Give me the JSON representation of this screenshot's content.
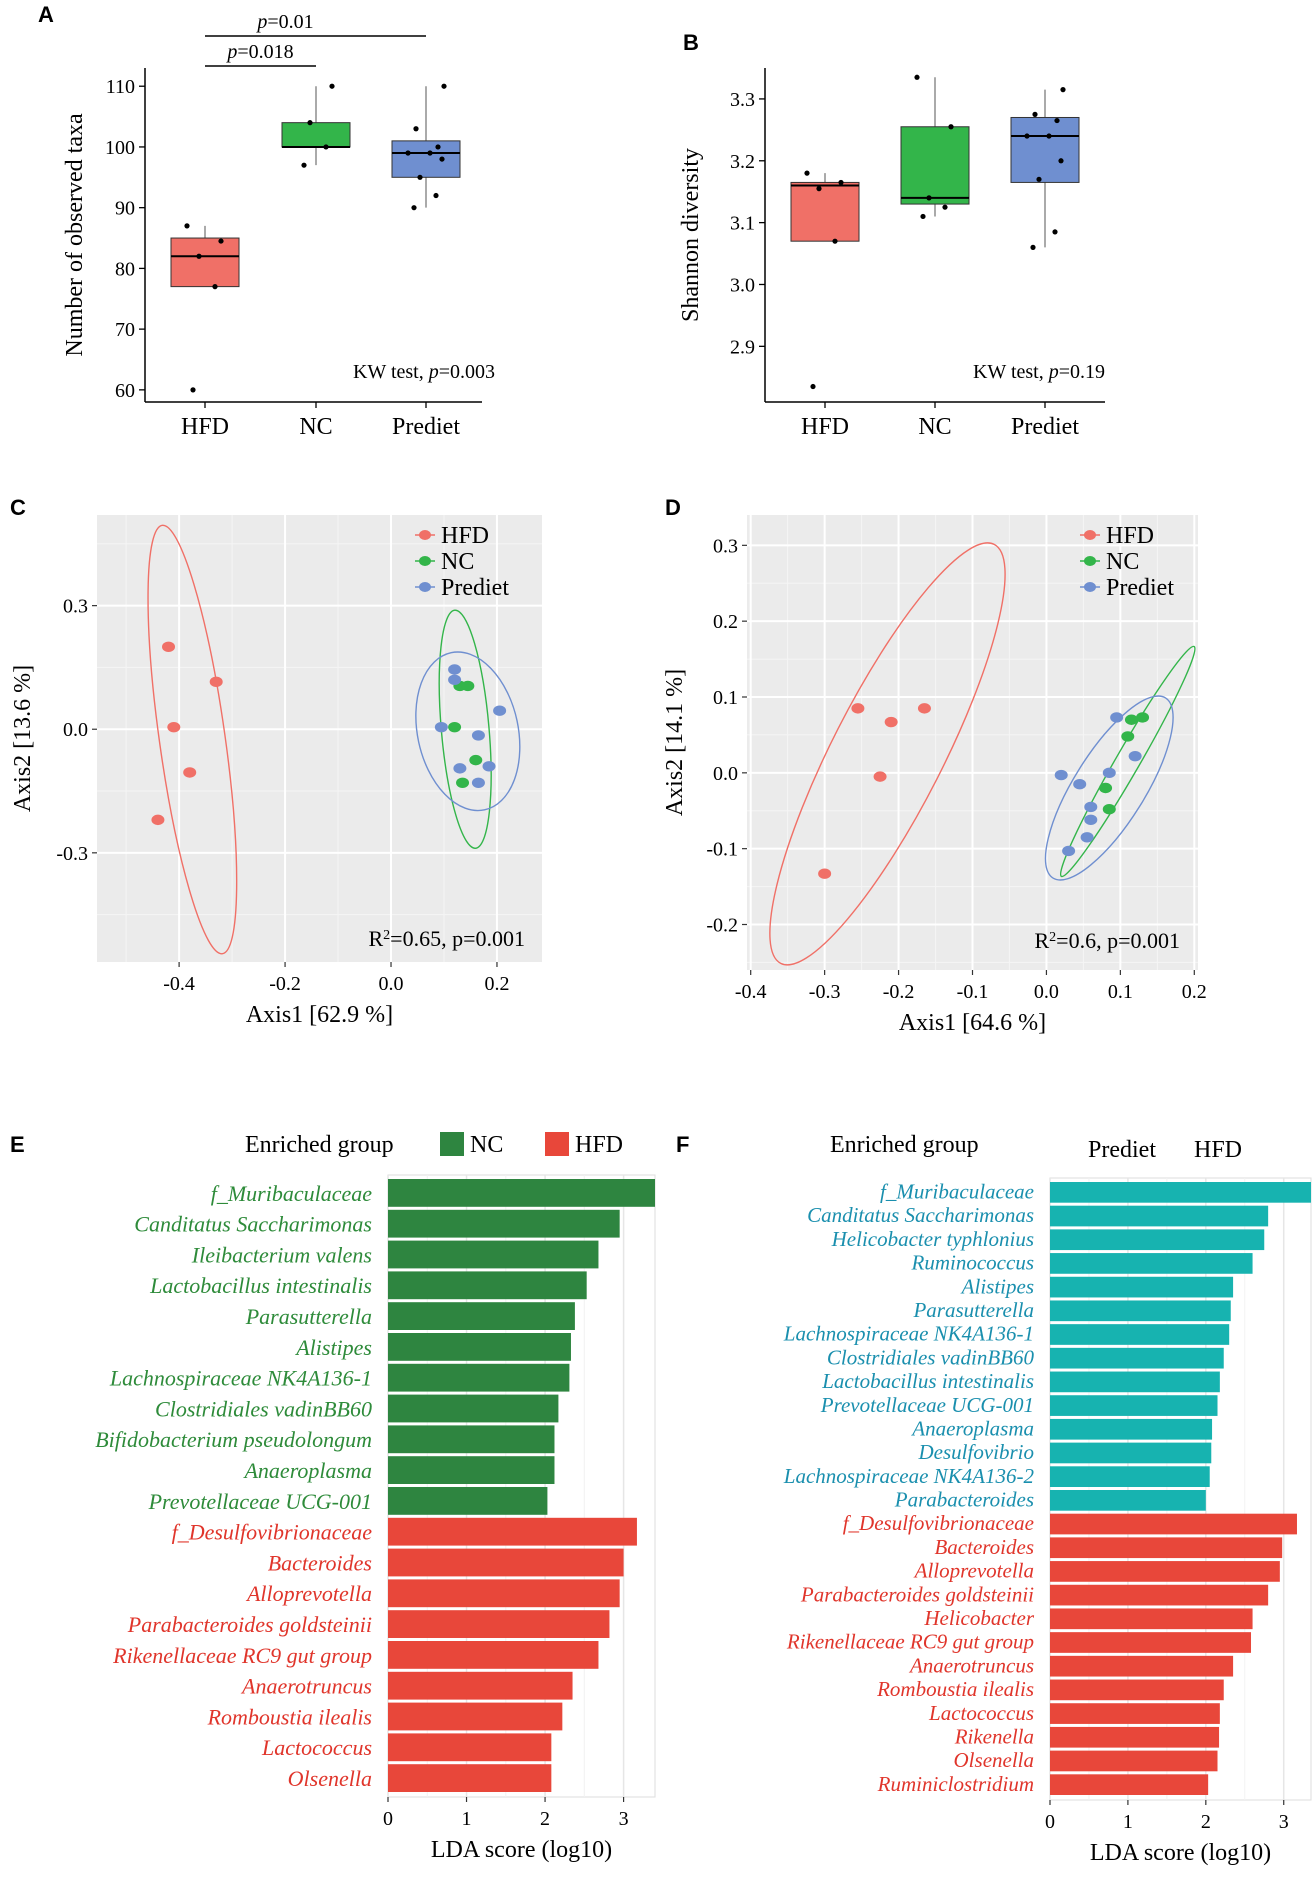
{
  "chart_data": [
    {
      "panel": "A",
      "type": "box",
      "ylabel": "Number of observed taxa",
      "ylim": [
        58,
        113
      ],
      "yticks": [
        60,
        70,
        80,
        90,
        100,
        110
      ],
      "categories": [
        "HFD",
        "NC",
        "Prediet"
      ],
      "colors": [
        "#F07067",
        "#33B54A",
        "#6F8FD0"
      ],
      "boxes": [
        {
          "group": "HFD",
          "whisker_low": 77,
          "q1": 77,
          "median": 82,
          "q3": 85,
          "whisker_high": 87
        },
        {
          "group": "NC",
          "whisker_low": 97,
          "q1": 100,
          "median": 100,
          "q3": 104,
          "whisker_high": 110
        },
        {
          "group": "Prediet",
          "whisker_low": 90,
          "q1": 95,
          "median": 99,
          "q3": 101,
          "whisker_high": 110
        }
      ],
      "points": [
        [
          60,
          77,
          82,
          84.5,
          87
        ],
        [
          97,
          100,
          104,
          110
        ],
        [
          90,
          92,
          95,
          98,
          99,
          99,
          100,
          103,
          110
        ]
      ],
      "annotation": {
        "prefix": "KW test, ",
        "p": "p",
        "value": "=0.003"
      },
      "brackets": [
        {
          "from": "HFD",
          "to": "NC",
          "p": "p",
          "label": "=0.018"
        },
        {
          "from": "HFD",
          "to": "Prediet",
          "p": "p",
          "label": "=0.01"
        }
      ]
    },
    {
      "panel": "B",
      "type": "box",
      "ylabel": "Shannon diversity",
      "ylim": [
        2.81,
        3.35
      ],
      "yticks": [
        2.9,
        3.0,
        3.1,
        3.2,
        3.3
      ],
      "tick_labels": [
        "2.9",
        "3.0",
        "3.1",
        "3.2",
        "3.3"
      ],
      "categories": [
        "HFD",
        "NC",
        "Prediet"
      ],
      "colors": [
        "#F07067",
        "#33B54A",
        "#6F8FD0"
      ],
      "boxes": [
        {
          "group": "HFD",
          "whisker_low": 3.07,
          "q1": 3.07,
          "median": 3.16,
          "q3": 3.165,
          "whisker_high": 3.18
        },
        {
          "group": "NC",
          "whisker_low": 3.11,
          "q1": 3.13,
          "median": 3.14,
          "q3": 3.255,
          "whisker_high": 3.335
        },
        {
          "group": "Prediet",
          "whisker_low": 3.06,
          "q1": 3.165,
          "median": 3.24,
          "q3": 3.27,
          "whisker_high": 3.315
        }
      ],
      "points": [
        [
          2.835,
          3.07,
          3.155,
          3.165,
          3.18
        ],
        [
          3.11,
          3.125,
          3.14,
          3.255,
          3.335
        ],
        [
          3.06,
          3.085,
          3.17,
          3.2,
          3.24,
          3.24,
          3.265,
          3.275,
          3.315
        ]
      ],
      "annotation": {
        "prefix": "KW test, ",
        "p": "p",
        "value": "=0.19"
      }
    },
    {
      "panel": "C",
      "type": "scatter",
      "xlabel": "Axis1 [62.9 %]",
      "ylabel": "Axis2 [13.6 %]",
      "xlim": [
        -0.555,
        0.285
      ],
      "ylim": [
        -0.565,
        0.52
      ],
      "xticks": [
        -0.4,
        -0.2,
        0.0,
        0.2
      ],
      "xtick_labels": [
        "-0.4",
        "-0.2",
        "0.0",
        "0.2"
      ],
      "yticks": [
        -0.3,
        0.0,
        0.3
      ],
      "ytick_labels": [
        "-0.3",
        "0.0",
        "0.3"
      ],
      "legend": [
        "HFD",
        "NC",
        "Prediet"
      ],
      "colors": [
        "#F07067",
        "#33B54A",
        "#6F8FD0"
      ],
      "series": [
        {
          "name": "HFD",
          "points": [
            [
              -0.42,
              0.2
            ],
            [
              -0.33,
              0.115
            ],
            [
              -0.41,
              0.005
            ],
            [
              -0.38,
              -0.105
            ],
            [
              -0.44,
              -0.22
            ]
          ]
        },
        {
          "name": "NC",
          "points": [
            [
              0.13,
              0.105
            ],
            [
              0.145,
              0.105
            ],
            [
              0.12,
              0.005
            ],
            [
              0.16,
              -0.075
            ],
            [
              0.135,
              -0.13
            ]
          ]
        },
        {
          "name": "Prediet",
          "points": [
            [
              0.12,
              0.145
            ],
            [
              0.12,
              0.12
            ],
            [
              0.205,
              0.045
            ],
            [
              0.095,
              0.005
            ],
            [
              0.165,
              -0.015
            ],
            [
              0.185,
              -0.09
            ],
            [
              0.13,
              -0.095
            ],
            [
              0.165,
              -0.13
            ]
          ]
        }
      ],
      "ellipses": [
        {
          "name": "HFD",
          "cx": -0.375,
          "cy": -0.025,
          "rx": 0.062,
          "ry": 0.525,
          "angle_deg": -8
        },
        {
          "name": "NC",
          "cx": 0.14,
          "cy": 0.0,
          "rx": 0.045,
          "ry": 0.29,
          "angle_deg": -5
        },
        {
          "name": "Prediet",
          "cx": 0.145,
          "cy": -0.005,
          "rx": 0.095,
          "ry": 0.195,
          "angle_deg": -12
        }
      ],
      "annotation": {
        "R": "R",
        "sup": "2",
        "rest": "=0.65, p=0.001"
      }
    },
    {
      "panel": "D",
      "type": "scatter",
      "xlabel": "Axis1 [64.6 %]",
      "ylabel": "Axis2 [14.1 %]",
      "xlim": [
        -0.405,
        0.205
      ],
      "ylim": [
        -0.26,
        0.34
      ],
      "xticks": [
        -0.4,
        -0.3,
        -0.2,
        -0.1,
        0.0,
        0.1,
        0.2
      ],
      "xtick_labels": [
        "-0.4",
        "-0.3",
        "-0.2",
        "-0.1",
        "0.0",
        "0.1",
        "0.2"
      ],
      "yticks": [
        -0.2,
        -0.1,
        0.0,
        0.1,
        0.2,
        0.3
      ],
      "ytick_labels": [
        "-0.2",
        "-0.1",
        "0.0",
        "0.1",
        "0.2",
        "0.3"
      ],
      "legend": [
        "HFD",
        "NC",
        "Prediet"
      ],
      "colors": [
        "#F07067",
        "#33B54A",
        "#6F8FD0"
      ],
      "series": [
        {
          "name": "HFD",
          "points": [
            [
              -0.255,
              0.085
            ],
            [
              -0.165,
              0.085
            ],
            [
              -0.21,
              0.067
            ],
            [
              -0.225,
              -0.005
            ],
            [
              -0.3,
              -0.133
            ]
          ]
        },
        {
          "name": "NC",
          "points": [
            [
              0.13,
              0.073
            ],
            [
              0.115,
              0.07
            ],
            [
              0.11,
              0.048
            ],
            [
              0.08,
              -0.02
            ],
            [
              0.085,
              -0.048
            ]
          ]
        },
        {
          "name": "Prediet",
          "points": [
            [
              0.095,
              0.073
            ],
            [
              0.12,
              0.022
            ],
            [
              0.02,
              -0.003
            ],
            [
              0.045,
              -0.015
            ],
            [
              0.085,
              0.0
            ],
            [
              0.06,
              -0.045
            ],
            [
              0.06,
              -0.062
            ],
            [
              0.055,
              -0.085
            ],
            [
              0.03,
              -0.103
            ]
          ]
        }
      ],
      "ellipses": [
        {
          "name": "HFD",
          "cx": -0.215,
          "cy": 0.025,
          "rx": 0.075,
          "ry": 0.31,
          "angle_deg": 27
        },
        {
          "name": "NC",
          "cx": 0.11,
          "cy": 0.015,
          "rx": 0.016,
          "ry": 0.175,
          "angle_deg": 30
        },
        {
          "name": "Prediet",
          "cx": 0.085,
          "cy": -0.02,
          "rx": 0.048,
          "ry": 0.14,
          "angle_deg": 32
        }
      ],
      "annotation": {
        "R": "R",
        "sup": "2",
        "rest": "=0.6, p=0.001"
      }
    },
    {
      "panel": "E",
      "type": "bar",
      "orientation": "horizontal",
      "xlabel": "LDA score (log10)",
      "xlim": [
        0,
        3.4
      ],
      "xticks": [
        0,
        1,
        2,
        3
      ],
      "legend_title": "Enriched group",
      "legend": [
        {
          "name": "NC",
          "color": "#2E8540"
        },
        {
          "name": "HFD",
          "color": "#E8473A"
        }
      ],
      "label_colors": {
        "NC": "#2E8B3A",
        "HFD": "#E0352B"
      },
      "bars": [
        {
          "label": "f_Muribaculaceae",
          "value": 3.4,
          "group": "NC"
        },
        {
          "label": "Canditatus Saccharimonas",
          "value": 2.95,
          "group": "NC"
        },
        {
          "label": "Ileibacterium valens",
          "value": 2.68,
          "group": "NC"
        },
        {
          "label": "Lactobacillus intestinalis",
          "value": 2.53,
          "group": "NC"
        },
        {
          "label": "Parasutterella",
          "value": 2.38,
          "group": "NC"
        },
        {
          "label": "Alistipes",
          "value": 2.33,
          "group": "NC"
        },
        {
          "label": "Lachnospiraceae NK4A136-1",
          "value": 2.31,
          "group": "NC"
        },
        {
          "label": "Clostridiales vadinBB60",
          "value": 2.17,
          "group": "NC"
        },
        {
          "label": "Bifidobacterium pseudolongum",
          "value": 2.12,
          "group": "NC"
        },
        {
          "label": "Anaeroplasma",
          "value": 2.12,
          "group": "NC"
        },
        {
          "label": "Prevotellaceae UCG-001",
          "value": 2.03,
          "group": "NC"
        },
        {
          "label": "f_Desulfovibrionaceae",
          "value": 3.17,
          "group": "HFD"
        },
        {
          "label": "Bacteroides",
          "value": 3.0,
          "group": "HFD"
        },
        {
          "label": "Alloprevotella",
          "value": 2.95,
          "group": "HFD"
        },
        {
          "label": "Parabacteroides goldsteinii",
          "value": 2.82,
          "group": "HFD"
        },
        {
          "label": "Rikenellaceae RC9 gut group",
          "value": 2.68,
          "group": "HFD"
        },
        {
          "label": "Anaerotruncus",
          "value": 2.35,
          "group": "HFD"
        },
        {
          "label": "Romboustia ilealis",
          "value": 2.22,
          "group": "HFD"
        },
        {
          "label": "Lactococcus",
          "value": 2.08,
          "group": "HFD"
        },
        {
          "label": "Olsenella",
          "value": 2.08,
          "group": "HFD"
        }
      ]
    },
    {
      "panel": "F",
      "type": "bar",
      "orientation": "horizontal",
      "xlabel": "LDA score (log10)",
      "xlim": [
        0,
        3.35
      ],
      "xticks": [
        0,
        1,
        2,
        3
      ],
      "legend_title": "Enriched group",
      "legend": [
        {
          "name": "Prediet",
          "color": "#17B3B0"
        },
        {
          "name": "HFD",
          "color": "#E8473A"
        }
      ],
      "label_colors": {
        "Prediet": "#1A8FAE",
        "HFD": "#E0352B"
      },
      "bars": [
        {
          "label": "f_Muribaculaceae",
          "value": 3.35,
          "group": "Prediet"
        },
        {
          "label": "Canditatus Saccharimonas",
          "value": 2.8,
          "group": "Prediet"
        },
        {
          "label": "Helicobacter typhlonius",
          "value": 2.75,
          "group": "Prediet"
        },
        {
          "label": "Ruminococcus",
          "value": 2.6,
          "group": "Prediet"
        },
        {
          "label": "Alistipes",
          "value": 2.35,
          "group": "Prediet"
        },
        {
          "label": "Parasutterella",
          "value": 2.32,
          "group": "Prediet"
        },
        {
          "label": "Lachnospiraceae NK4A136-1",
          "value": 2.3,
          "group": "Prediet"
        },
        {
          "label": "Clostridiales vadinBB60",
          "value": 2.23,
          "group": "Prediet"
        },
        {
          "label": "Lactobacillus intestinalis",
          "value": 2.18,
          "group": "Prediet"
        },
        {
          "label": "Prevotellaceae UCG-001",
          "value": 2.15,
          "group": "Prediet"
        },
        {
          "label": "Anaeroplasma",
          "value": 2.08,
          "group": "Prediet"
        },
        {
          "label": "Desulfovibrio",
          "value": 2.07,
          "group": "Prediet"
        },
        {
          "label": "Lachnospiraceae NK4A136-2",
          "value": 2.05,
          "group": "Prediet"
        },
        {
          "label": "Parabacteroides",
          "value": 2.0,
          "group": "Prediet"
        },
        {
          "label": "f_Desulfovibrionaceae",
          "value": 3.17,
          "group": "HFD"
        },
        {
          "label": "Bacteroides",
          "value": 2.98,
          "group": "HFD"
        },
        {
          "label": "Alloprevotella",
          "value": 2.95,
          "group": "HFD"
        },
        {
          "label": "Parabacteroides goldsteinii",
          "value": 2.8,
          "group": "HFD"
        },
        {
          "label": "Helicobacter",
          "value": 2.6,
          "group": "HFD"
        },
        {
          "label": "Rikenellaceae RC9 gut group",
          "value": 2.58,
          "group": "HFD"
        },
        {
          "label": "Anaerotruncus",
          "value": 2.35,
          "group": "HFD"
        },
        {
          "label": "Romboustia ilealis",
          "value": 2.23,
          "group": "HFD"
        },
        {
          "label": "Lactococcus",
          "value": 2.18,
          "group": "HFD"
        },
        {
          "label": "Rikenella",
          "value": 2.17,
          "group": "HFD"
        },
        {
          "label": "Olsenella",
          "value": 2.15,
          "group": "HFD"
        },
        {
          "label": "Ruminiclostridium",
          "value": 2.03,
          "group": "HFD"
        }
      ]
    }
  ]
}
